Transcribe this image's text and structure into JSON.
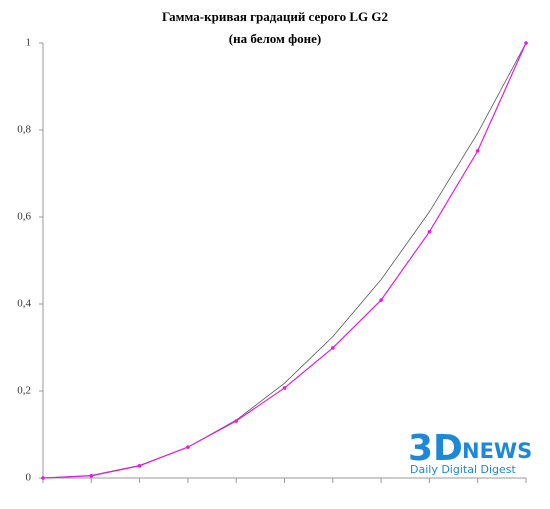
{
  "chart_data": {
    "type": "line",
    "title": "Гамма-кривая градаций серого LG G2",
    "subtitle": "(на белом фоне)",
    "categories": [
      null,
      null,
      null,
      null,
      null,
      null,
      null,
      null,
      null,
      null,
      null
    ],
    "series": [
      {
        "color": "#555555",
        "values": [
          0,
          0.006,
          0.029,
          0.071,
          0.133,
          0.218,
          0.325,
          0.456,
          0.612,
          0.793,
          1
        ]
      },
      {
        "color": "#e01ee0",
        "values": [
          0,
          0.005,
          0.028,
          0.071,
          0.131,
          0.207,
          0.299,
          0.409,
          0.566,
          0.752,
          1
        ],
        "markers": true
      }
    ],
    "ylim": [
      0,
      1
    ],
    "yticks": [
      0,
      {
        "value": 0.2,
        "label": "0,2"
      },
      {
        "value": 0.4,
        "label": "0,4"
      },
      {
        "value": 0.6,
        "label": "0,6"
      },
      {
        "value": 0.8,
        "label": "0,8"
      },
      1
    ],
    "grid": false,
    "logo": {
      "brand": "3D",
      "brand_rest": "NEWS",
      "tagline": "Daily Digital Digest"
    }
  }
}
